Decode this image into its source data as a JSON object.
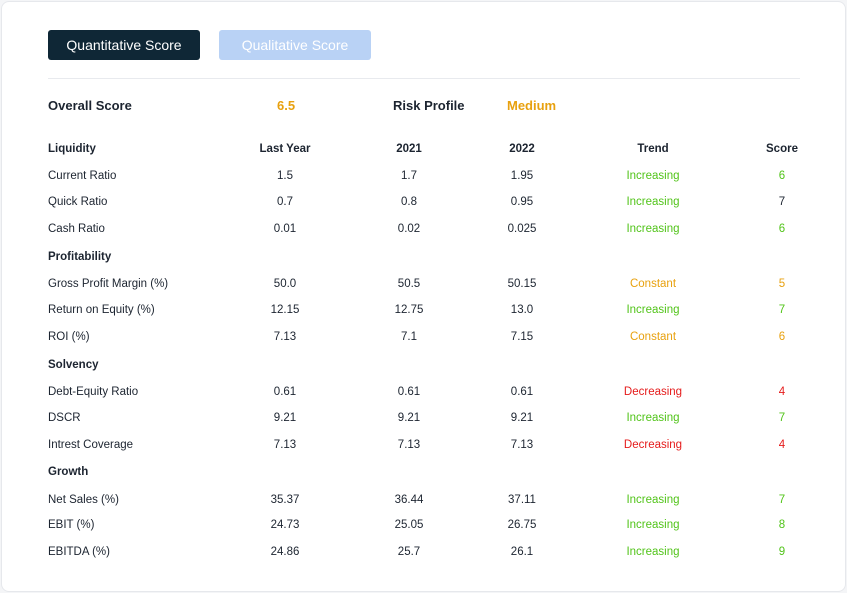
{
  "tabs": [
    {
      "label": "Quantitative Score",
      "active": true
    },
    {
      "label": "Qualitative Score",
      "active": false
    }
  ],
  "summary": {
    "overall_label": "Overall Score",
    "overall_value": "6.5",
    "risk_label": "Risk Profile",
    "risk_value": "Medium"
  },
  "colors": {
    "increasing": "#52c41a",
    "constant": "#e8a10f",
    "decreasing": "#e51b1b",
    "accent": "#0f2736"
  },
  "columns": {
    "name": "Liquidity",
    "last_year": "Last Year",
    "y2021": "2021",
    "y2022": "2022",
    "trend": "Trend",
    "score": "Score"
  },
  "sections": [
    {
      "title": "Liquidity",
      "rows": [
        {
          "name": "Current Ratio",
          "last_year": "1.5",
          "y2021": "1.7",
          "y2022": "1.95",
          "trend": "Increasing",
          "score": "6",
          "score_style": "increasing"
        },
        {
          "name": "Quick Ratio",
          "last_year": "0.7",
          "y2021": "0.8",
          "y2022": "0.95",
          "trend": "Increasing",
          "score": "7",
          "score_style": "neutral"
        },
        {
          "name": "Cash Ratio",
          "last_year": "0.01",
          "y2021": "0.02",
          "y2022": "0.025",
          "trend": "Increasing",
          "score": "6",
          "score_style": "increasing"
        }
      ]
    },
    {
      "title": "Profitability",
      "rows": [
        {
          "name": "Gross Profit Margin (%)",
          "last_year": "50.0",
          "y2021": "50.5",
          "y2022": "50.15",
          "trend": "Constant",
          "score": "5",
          "score_style": "constant"
        },
        {
          "name": "Return on Equity (%)",
          "last_year": "12.15",
          "y2021": "12.75",
          "y2022": "13.0",
          "trend": "Increasing",
          "score": "7",
          "score_style": "increasing"
        },
        {
          "name": "ROI (%)",
          "last_year": "7.13",
          "y2021": "7.1",
          "y2022": "7.15",
          "trend": "Constant",
          "score": "6",
          "score_style": "constant"
        }
      ]
    },
    {
      "title": "Solvency",
      "rows": [
        {
          "name": "Debt-Equity Ratio",
          "last_year": "0.61",
          "y2021": "0.61",
          "y2022": "0.61",
          "trend": "Decreasing",
          "score": "4",
          "score_style": "decreasing"
        },
        {
          "name": "DSCR",
          "last_year": "9.21",
          "y2021": "9.21",
          "y2022": "9.21",
          "trend": "Increasing",
          "score": "7",
          "score_style": "increasing"
        },
        {
          "name": "Intrest Coverage",
          "last_year": "7.13",
          "y2021": "7.13",
          "y2022": "7.13",
          "trend": "Decreasing",
          "score": "4",
          "score_style": "decreasing"
        }
      ]
    },
    {
      "title": "Growth",
      "rows": [
        {
          "name": "Net Sales (%)",
          "last_year": "35.37",
          "y2021": "36.44",
          "y2022": "37.11",
          "trend": "Increasing",
          "score": "7",
          "score_style": "increasing"
        },
        {
          "name": "EBIT (%)",
          "last_year": "24.73",
          "y2021": "25.05",
          "y2022": "26.75",
          "trend": "Increasing",
          "score": "8",
          "score_style": "increasing"
        },
        {
          "name": "EBITDA (%)",
          "last_year": "24.86",
          "y2021": "25.7",
          "y2022": "26.1",
          "trend": "Increasing",
          "score": "9",
          "score_style": "increasing"
        }
      ]
    }
  ]
}
